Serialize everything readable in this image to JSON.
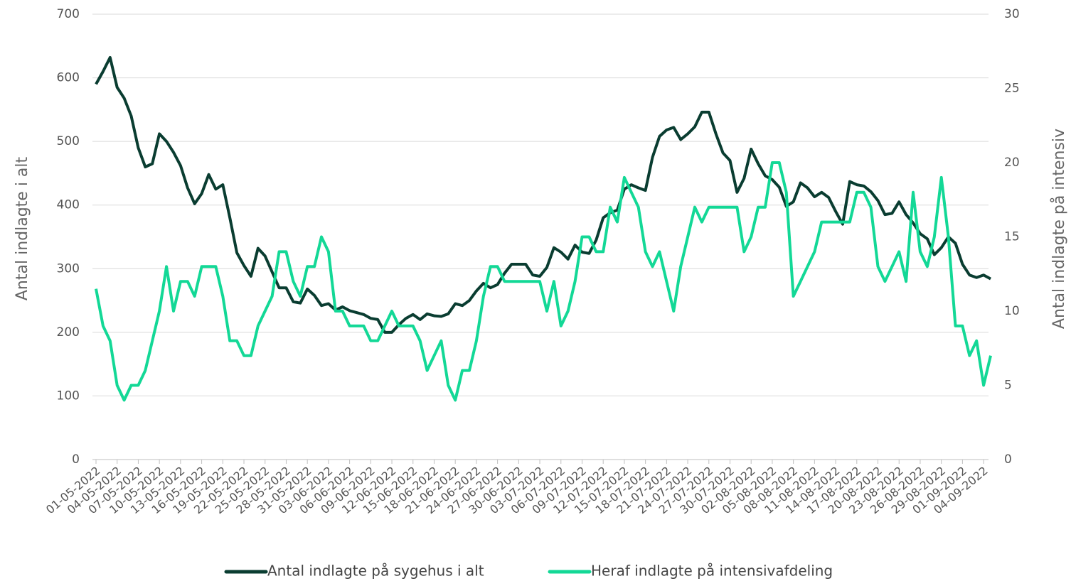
{
  "chart_data": {
    "type": "line",
    "categories": [
      "01-05-2022",
      null,
      null,
      "04-05-2022",
      null,
      null,
      "07-05-2022",
      null,
      null,
      "10-05-2022",
      null,
      null,
      "13-05-2022",
      null,
      null,
      "16-05-2022",
      null,
      null,
      "19-05-2022",
      null,
      null,
      "22-05-2022",
      null,
      null,
      "25-05-2022",
      null,
      null,
      "28-05-2022",
      null,
      null,
      "31-05-2022",
      null,
      null,
      "03-06-2022",
      null,
      null,
      "06-06-2022",
      null,
      null,
      "09-06-2022",
      null,
      null,
      "12-06-2022",
      null,
      null,
      "15-06-2022",
      null,
      null,
      "18-06-2022",
      null,
      null,
      "21-06-2022",
      null,
      null,
      "24-06-2022",
      null,
      null,
      "27-06-2022",
      null,
      null,
      "30-06-2022",
      null,
      null,
      "03-07-2022",
      null,
      null,
      "06-07-2022",
      null,
      null,
      "09-07-2022",
      null,
      null,
      "12-07-2022",
      null,
      null,
      "15-07-2022",
      null,
      null,
      "18-07-2022",
      null,
      null,
      "21-07-2022",
      null,
      null,
      "24-07-2022",
      null,
      null,
      "27-07-2022",
      null,
      null,
      "30-07-2022",
      null,
      null,
      "02-08-2022",
      null,
      null,
      "05-08-2022",
      null,
      null,
      "08-08-2022",
      null,
      null,
      "11-08-2022",
      null,
      null,
      "14-08-2022",
      null,
      null,
      "17-08-2022",
      null,
      null,
      "20-08-2022",
      null,
      null,
      "23-08-2022",
      null,
      null,
      "26-08-2022",
      null,
      null,
      "29-08-2022",
      null,
      null,
      "01-09-2022",
      null,
      null,
      "04-09-2022",
      null
    ],
    "series": [
      {
        "name": "Antal indlagte på sygehus i alt",
        "color": "#0a3d31",
        "axis": "y",
        "values": [
          590,
          610,
          632,
          585,
          568,
          540,
          490,
          460,
          465,
          512,
          500,
          483,
          462,
          427,
          402,
          418,
          448,
          425,
          432,
          380,
          325,
          305,
          288,
          332,
          320,
          295,
          270,
          270,
          248,
          246,
          268,
          258,
          242,
          245,
          235,
          240,
          234,
          231,
          228,
          222,
          220,
          200,
          200,
          212,
          222,
          228,
          220,
          229,
          226,
          225,
          229,
          245,
          242,
          250,
          265,
          277,
          270,
          275,
          293,
          307,
          307,
          307,
          290,
          288,
          302,
          333,
          326,
          315,
          337,
          326,
          324,
          345,
          380,
          388,
          392,
          425,
          432,
          427,
          423,
          475,
          508,
          518,
          522,
          503,
          512,
          523,
          546,
          546,
          512,
          482,
          470,
          420,
          442,
          488,
          465,
          446,
          440,
          428,
          398,
          405,
          435,
          427,
          413,
          420,
          412,
          390,
          370,
          437,
          432,
          430,
          421,
          407,
          385,
          387,
          405,
          385,
          372,
          355,
          347,
          322,
          333,
          350,
          340,
          307,
          290,
          286,
          290,
          284
        ]
      },
      {
        "name": "Heraf indlagte på intensivafdeling",
        "color": "#13d896",
        "axis": "y2",
        "values": [
          11.5,
          9,
          8,
          5,
          4,
          5,
          5,
          6,
          8,
          10,
          13,
          10,
          12,
          12,
          11,
          13,
          13,
          13,
          11,
          8,
          8,
          7,
          7,
          9,
          10,
          11,
          14,
          14,
          12,
          11,
          13,
          13,
          15,
          14,
          10,
          10,
          9,
          9,
          9,
          8,
          8,
          9,
          10,
          9,
          9,
          9,
          8,
          6,
          7,
          8,
          5,
          4,
          6,
          6,
          8,
          11,
          13,
          13,
          12,
          12,
          12,
          12,
          12,
          12,
          10,
          12,
          9,
          10,
          12,
          15,
          15,
          14,
          14,
          17,
          16,
          19,
          18,
          17,
          14,
          13,
          14,
          12,
          10,
          13,
          15,
          17,
          16,
          17,
          17,
          17,
          17,
          17,
          14,
          15,
          17,
          17,
          20,
          20,
          18,
          11,
          12,
          13,
          14,
          16,
          16,
          16,
          16,
          16,
          18,
          18,
          17,
          13,
          12,
          13,
          14,
          12,
          18,
          14,
          13,
          15,
          19,
          15,
          9,
          9,
          7,
          8,
          5,
          7
        ]
      }
    ],
    "ylabel": "Antal indlagte i alt",
    "y2label": "Antal indlagte på intensiv",
    "ylim": [
      0,
      700
    ],
    "yticks": [
      0,
      100,
      200,
      300,
      400,
      500,
      600,
      700
    ],
    "y2lim": [
      0,
      30
    ],
    "y2ticks": [
      0,
      5,
      10,
      15,
      20,
      25,
      30
    ],
    "grid": true,
    "legend": "bottom"
  }
}
